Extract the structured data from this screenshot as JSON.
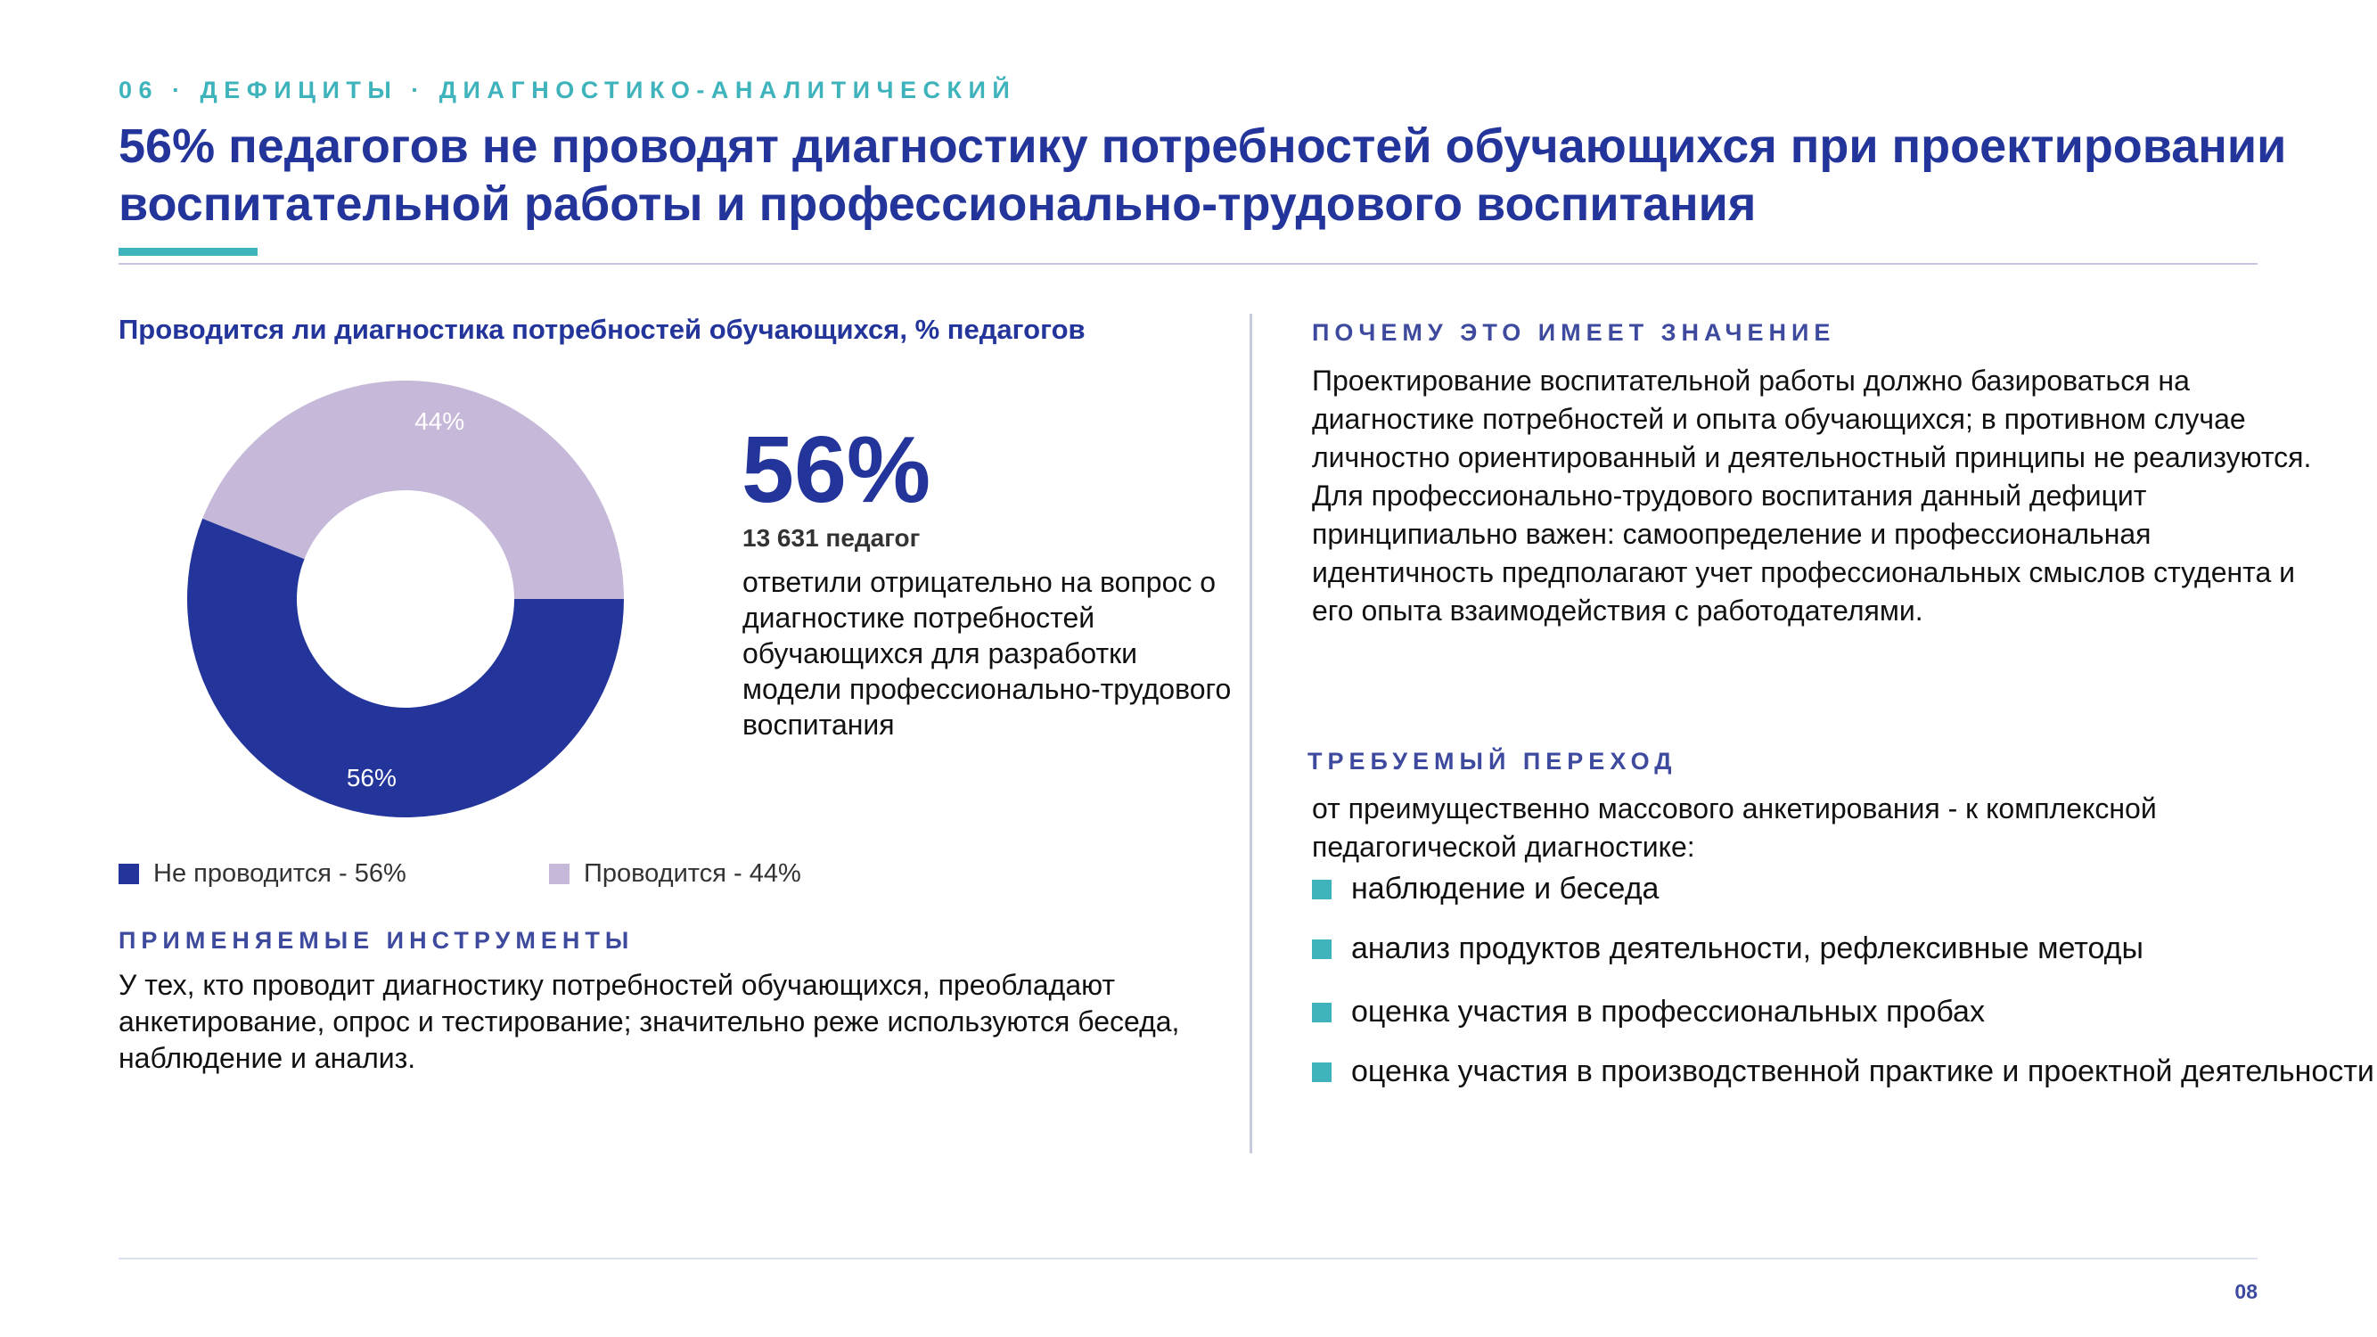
{
  "header": {
    "kicker": "06 · ДЕФИЦИТЫ · ДИАГНОСТИКО-АНАЛИТИЧЕСКИЙ",
    "title": "56% педагогов не проводят диагностику потребностей обучающихся при проектировании воспитательной работы и профессионально-трудового воспитания"
  },
  "chart_data": {
    "type": "pie",
    "title": "Проводится ли диагностика потребностей обучающихся, % педагогов",
    "categories": [
      "Не проводится",
      "Проводится"
    ],
    "values": [
      56,
      44
    ],
    "data_labels": [
      "56%",
      "44%"
    ],
    "colors": [
      "#23359a",
      "#c5b8d8"
    ],
    "legend": [
      "Не проводится - 56%",
      "Проводится - 44%"
    ],
    "legend_position": "bottom"
  },
  "highlight": {
    "value": "56%",
    "count": "13 631 педагог",
    "description": "ответили отрицательно на вопрос о диагностике потребностей обучающихся для разработки модели профессионально-трудового воспитания"
  },
  "tools": {
    "heading": "ПРИМЕНЯЕМЫЕ ИНСТРУМЕНТЫ",
    "text": "У тех, кто проводит диагностику потребностей обучающихся, преобладают анкетирование, опрос и тестирование; значительно реже используются беседа, наблюдение и анализ."
  },
  "importance": {
    "heading": "ПОЧЕМУ ЭТО ИМЕЕТ ЗНАЧЕНИЕ",
    "paragraph1": "Проектирование воспитательной работы должно базироваться на диагностике потребностей и опыта обучающихся; в противном случае личностно ориентированный и деятельностный принципы не реализуются.",
    "paragraph2": "Для профессионально-трудового воспитания данный дефицит принципиально важен: самоопределение и профессиональная идентичность предполагают учет профессиональных смыслов студента и его опыта взаимодействия с работодателями."
  },
  "transition": {
    "heading": "ТРЕБУЕМЫЙ ПЕРЕХОД",
    "intro": "от преимущественно массового анкетирования - к комплексной педагогической диагностике:",
    "items": [
      "наблюдение и беседа",
      "анализ продуктов деятельности, рефлексивные методы",
      "оценка участия в профессиональных пробах",
      "оценка участия в производственной практике и проектной деятельности"
    ]
  },
  "footer": {
    "page_number": "08"
  },
  "colors": {
    "accent": "#3fb3bc",
    "primary": "#23359a",
    "secondary": "#c5b8d8"
  }
}
